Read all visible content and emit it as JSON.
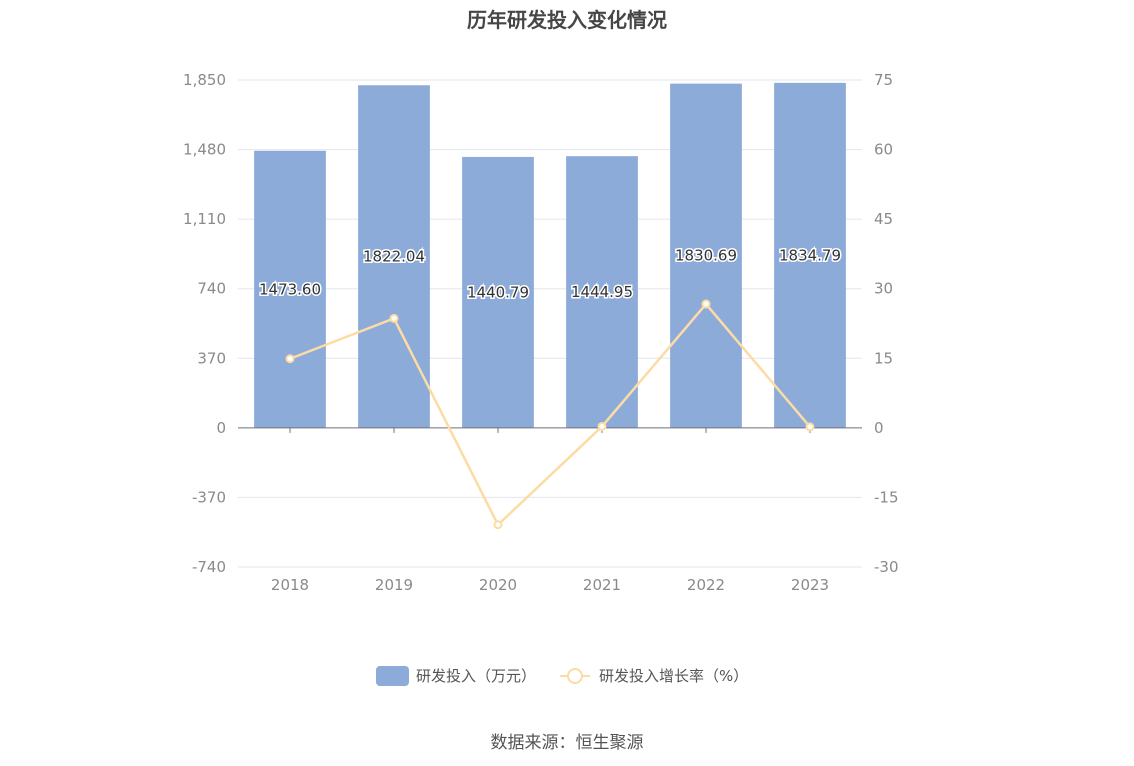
{
  "title": "历年研发投入变化情况",
  "source": "数据来源：恒生聚源",
  "colors": {
    "bar": "#8dabd9",
    "line": "#fcdca4",
    "grid": "#e3e6ef",
    "axis": "#6e7079"
  },
  "chart_data": {
    "type": "bar",
    "title": "历年研发投入变化情况",
    "categories": [
      "2018",
      "2019",
      "2020",
      "2021",
      "2022",
      "2023"
    ],
    "series": [
      {
        "name": "研发投入（万元）",
        "type": "bar",
        "axis": "left",
        "values": [
          1473.6,
          1822.04,
          1440.79,
          1444.95,
          1830.69,
          1834.79
        ],
        "labels": [
          "1473.60",
          "1822.04",
          "1440.79",
          "1444.95",
          "1830.69",
          "1834.79"
        ]
      },
      {
        "name": "研发投入增长率（%）",
        "type": "line",
        "axis": "right",
        "values": [
          14.9,
          23.6,
          -20.9,
          0.3,
          26.7,
          0.2
        ]
      }
    ],
    "y_left": {
      "ylim": [
        -740,
        1850
      ],
      "ticks": [
        -740,
        -370,
        0,
        370,
        740,
        1110,
        1480,
        1850
      ],
      "tick_labels": [
        "-740",
        "-370",
        "0",
        "370",
        "740",
        "1,110",
        "1,480",
        "1,850"
      ]
    },
    "y_right": {
      "ylim": [
        -30,
        75
      ],
      "ticks": [
        -30,
        -15,
        0,
        15,
        30,
        45,
        60,
        75
      ],
      "tick_labels": [
        "-30",
        "-15",
        "0",
        "15",
        "30",
        "45",
        "60",
        "75"
      ]
    },
    "grid": true,
    "legend_position": "bottom-center"
  }
}
